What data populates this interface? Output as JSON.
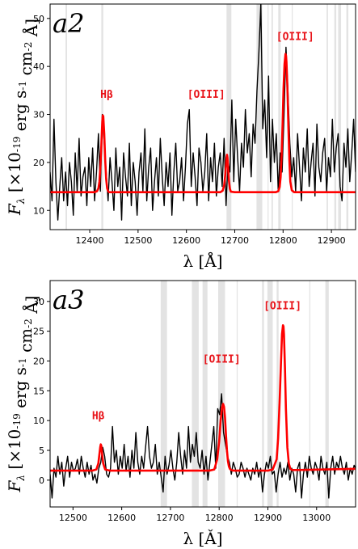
{
  "chart_data": [
    {
      "type": "line",
      "panel_label": "a2",
      "xlabel": "λ [Å]",
      "ylabel": "F_λ [×10^-19 erg s^-1 cm^-2 Å]",
      "xlim": [
        12318,
        12950
      ],
      "ylim": [
        6,
        53
      ],
      "xticks": [
        12400,
        12500,
        12600,
        12700,
        12800,
        12900
      ],
      "yticks": [
        10,
        20,
        30,
        40,
        50
      ],
      "grid": false,
      "masked_regions": [
        [
          12350,
          12353
        ],
        [
          12424,
          12428
        ],
        [
          12683,
          12693
        ],
        [
          12745,
          12757
        ],
        [
          12768,
          12770
        ],
        [
          12776,
          12779
        ],
        [
          12790,
          12795
        ],
        [
          12818,
          12820
        ],
        [
          12890,
          12893
        ],
        [
          12906,
          12910
        ],
        [
          12914,
          12920
        ],
        [
          12931,
          12935
        ]
      ],
      "colors": {
        "data": "#000000",
        "model": "#ff0000",
        "mask": "#e3e3e3",
        "label": "#e8141a"
      },
      "series": [
        {
          "role": "data",
          "x": [
            12318,
            12322,
            12326,
            12330,
            12334,
            12338,
            12342,
            12346,
            12350,
            12354,
            12358,
            12362,
            12366,
            12370,
            12374,
            12378,
            12382,
            12386,
            12390,
            12394,
            12398,
            12402,
            12406,
            12410,
            12414,
            12418,
            12422,
            12426,
            12430,
            12434,
            12438,
            12442,
            12446,
            12450,
            12454,
            12458,
            12462,
            12466,
            12470,
            12474,
            12478,
            12482,
            12486,
            12490,
            12494,
            12498,
            12502,
            12506,
            12510,
            12514,
            12518,
            12522,
            12526,
            12530,
            12534,
            12538,
            12542,
            12546,
            12550,
            12554,
            12558,
            12562,
            12566,
            12570,
            12574,
            12578,
            12582,
            12586,
            12590,
            12594,
            12598,
            12602,
            12606,
            12610,
            12614,
            12618,
            12622,
            12626,
            12630,
            12634,
            12638,
            12642,
            12646,
            12650,
            12654,
            12658,
            12662,
            12666,
            12670,
            12674,
            12678,
            12682,
            12686,
            12690,
            12694,
            12698,
            12702,
            12706,
            12710,
            12714,
            12718,
            12722,
            12726,
            12730,
            12734,
            12738,
            12742,
            12746,
            12750,
            12754,
            12758,
            12762,
            12766,
            12770,
            12774,
            12778,
            12782,
            12786,
            12790,
            12794,
            12798,
            12802,
            12806,
            12810,
            12814,
            12818,
            12822,
            12826,
            12830,
            12834,
            12838,
            12842,
            12846,
            12850,
            12854,
            12858,
            12862,
            12866,
            12870,
            12874,
            12878,
            12882,
            12886,
            12890,
            12894,
            12898,
            12902,
            12906,
            12910,
            12914,
            12918,
            12922,
            12926,
            12930,
            12934,
            12938,
            12942,
            12946,
            12950
          ],
          "y": [
            18,
            12,
            29,
            16,
            8,
            15,
            21,
            12,
            18,
            11,
            20,
            16,
            9,
            22,
            14,
            25,
            13,
            17,
            19,
            11,
            21,
            15,
            23,
            12,
            18,
            26,
            14,
            30,
            24,
            18,
            12,
            21,
            16,
            10,
            23,
            15,
            19,
            8,
            22,
            17,
            13,
            24,
            11,
            20,
            16,
            9,
            18,
            22,
            14,
            27,
            12,
            19,
            23,
            10,
            16,
            21,
            13,
            25,
            17,
            11,
            20,
            15,
            22,
            9,
            18,
            24,
            14,
            16,
            21,
            12,
            19,
            28,
            31,
            15,
            22,
            17,
            11,
            23,
            20,
            14,
            18,
            26,
            12,
            21,
            16,
            24,
            13,
            19,
            22,
            15,
            25,
            11,
            20,
            18,
            33,
            16,
            29,
            21,
            14,
            24,
            19,
            31,
            22,
            26,
            17,
            28,
            24,
            35,
            43,
            53,
            27,
            33,
            21,
            38,
            16,
            29,
            20,
            26,
            14,
            22,
            18,
            30,
            44,
            35,
            24,
            17,
            21,
            14,
            26,
            19,
            12,
            23,
            18,
            27,
            15,
            20,
            24,
            13,
            28,
            19,
            16,
            22,
            25,
            14,
            21,
            17,
            29,
            18,
            23,
            26,
            15,
            12,
            24,
            19,
            27,
            16,
            22,
            29,
            18
          ]
        },
        {
          "role": "model",
          "x": [
            12318,
            12400,
            12410,
            12415,
            12418,
            12420,
            12422,
            12424,
            12426,
            12427,
            12428,
            12430,
            12432,
            12434,
            12436,
            12438,
            12440,
            12450,
            12670,
            12675,
            12678,
            12680,
            12682,
            12683,
            12684,
            12685,
            12686,
            12688,
            12690,
            12692,
            12700,
            12785,
            12790,
            12793,
            12795,
            12797,
            12799,
            12801,
            12803,
            12805,
            12806,
            12807,
            12809,
            12811,
            12813,
            12815,
            12818,
            12823,
            12950
          ],
          "y": [
            13.8,
            13.8,
            13.8,
            14.0,
            14.6,
            16.0,
            19.0,
            23.5,
            28.5,
            29.8,
            29.6,
            26.0,
            20.5,
            16.5,
            14.6,
            14.0,
            13.8,
            13.8,
            13.8,
            14.1,
            15.2,
            17.0,
            19.5,
            21.0,
            21.6,
            21.0,
            19.3,
            16.2,
            14.5,
            13.9,
            13.8,
            13.8,
            14.0,
            14.9,
            17.0,
            21.5,
            28.0,
            35.5,
            40.5,
            42.6,
            42.3,
            41.0,
            35.5,
            27.5,
            20.5,
            16.0,
            14.2,
            13.8,
            13.8
          ]
        }
      ],
      "annotations": [
        {
          "text": "Hβ",
          "x": 12435,
          "y": 33.5
        },
        {
          "text": "[OIII]",
          "x": 12641,
          "y": 33.5
        },
        {
          "text": "[OIII]",
          "x": 12825,
          "y": 45.5
        }
      ]
    },
    {
      "type": "line",
      "panel_label": "a3",
      "xlabel": "λ [Ǎ]",
      "ylabel": "F_λ [×10^-19 erg s^-1 cm^-2 Å]",
      "xlim": [
        12453,
        13080
      ],
      "ylim": [
        -4.5,
        33.5
      ],
      "xticks": [
        12500,
        12600,
        12700,
        12800,
        12900,
        13000
      ],
      "yticks": [
        0,
        5,
        10,
        15,
        20,
        25,
        30
      ],
      "grid": false,
      "masked_regions": [
        [
          12680,
          12693
        ],
        [
          12744,
          12758
        ],
        [
          12766,
          12776
        ],
        [
          12798,
          12812
        ],
        [
          12836,
          12838
        ],
        [
          12888,
          12892
        ],
        [
          12899,
          12910
        ],
        [
          12918,
          12922
        ],
        [
          12985,
          12987
        ],
        [
          13018,
          13025
        ]
      ],
      "colors": {
        "data": "#000000",
        "model": "#ff0000",
        "mask": "#e3e3e3",
        "label": "#e8141a"
      },
      "series": [
        {
          "role": "data",
          "x": [
            12453,
            12457,
            12461,
            12465,
            12469,
            12473,
            12477,
            12481,
            12485,
            12489,
            12493,
            12497,
            12501,
            12505,
            12509,
            12513,
            12517,
            12521,
            12525,
            12529,
            12533,
            12537,
            12541,
            12545,
            12549,
            12553,
            12557,
            12561,
            12565,
            12569,
            12573,
            12577,
            12581,
            12585,
            12589,
            12593,
            12597,
            12601,
            12605,
            12609,
            12613,
            12617,
            12621,
            12625,
            12629,
            12633,
            12637,
            12641,
            12645,
            12649,
            12653,
            12657,
            12661,
            12665,
            12669,
            12673,
            12677,
            12681,
            12685,
            12689,
            12693,
            12697,
            12701,
            12705,
            12709,
            12713,
            12717,
            12721,
            12725,
            12729,
            12733,
            12737,
            12741,
            12745,
            12749,
            12753,
            12757,
            12761,
            12765,
            12769,
            12773,
            12777,
            12781,
            12785,
            12789,
            12793,
            12797,
            12801,
            12805,
            12809,
            12813,
            12817,
            12821,
            12825,
            12829,
            12833,
            12837,
            12841,
            12845,
            12849,
            12853,
            12857,
            12861,
            12865,
            12869,
            12873,
            12877,
            12881,
            12885,
            12889,
            12893,
            12897,
            12901,
            12905,
            12909,
            12913,
            12917,
            12921,
            12925,
            12929,
            12933,
            12937,
            12941,
            12945,
            12949,
            12953,
            12957,
            12961,
            12965,
            12969,
            12973,
            12977,
            12981,
            12985,
            12989,
            12993,
            12997,
            13001,
            13005,
            13009,
            13013,
            13017,
            13021,
            13025,
            13029,
            13033,
            13037,
            13041,
            13045,
            13049,
            13053,
            13057,
            13061,
            13065,
            13069,
            13073,
            13077,
            13080
          ],
          "y": [
            1,
            -3,
            2,
            0.5,
            4,
            1,
            3,
            -1,
            2,
            4,
            0.5,
            3,
            1.5,
            2,
            3.5,
            1,
            4,
            2,
            0.5,
            3,
            1,
            2.5,
            0,
            1,
            -0.5,
            2,
            3,
            5.5,
            4,
            1,
            0.5,
            2,
            9,
            3,
            5,
            1,
            4,
            2,
            6,
            1.5,
            4,
            0.5,
            5,
            2,
            8,
            3,
            1,
            4,
            2,
            5.5,
            9,
            4,
            2,
            3,
            6,
            1,
            3,
            0.5,
            -2,
            4,
            1,
            2.5,
            5,
            2,
            0,
            3,
            8,
            4,
            1,
            5,
            2,
            9,
            3,
            6,
            4,
            8,
            3,
            2,
            5,
            1,
            4,
            0,
            3,
            6,
            9,
            2,
            12,
            11,
            14.5,
            8,
            6,
            4,
            3,
            1,
            3,
            2,
            0.5,
            1,
            3,
            2,
            0.5,
            2,
            1,
            0,
            2,
            1,
            3,
            0.5,
            2,
            -2,
            1,
            3,
            2,
            4,
            1,
            1.5,
            -2,
            1,
            3,
            0.5,
            2,
            1,
            3,
            0,
            2,
            1,
            -2,
            2,
            3,
            -3,
            1,
            3,
            0.5,
            4,
            2,
            1,
            3,
            2,
            0,
            4,
            2,
            1,
            3,
            -3,
            2,
            4,
            1,
            3,
            2,
            4,
            2,
            1,
            3,
            0,
            2,
            1,
            2.5,
            2
          ]
        },
        {
          "role": "model",
          "x": [
            12453,
            12540,
            12548,
            12552,
            12554,
            12556,
            12557,
            12558,
            12560,
            12562,
            12566,
            12575,
            12780,
            12790,
            12796,
            12800,
            12803,
            12806,
            12808,
            12810,
            12812,
            12814,
            12816,
            12818,
            12820,
            12822,
            12825,
            12830,
            12900,
            12910,
            12918,
            12921,
            12924,
            12927,
            12929,
            12931,
            12932,
            12933,
            12935,
            12937,
            12940,
            12943,
            12946,
            12950,
            12960,
            13080
          ],
          "y": [
            1.6,
            1.6,
            1.8,
            2.8,
            4.2,
            5.6,
            6.0,
            5.8,
            4.2,
            2.8,
            1.8,
            1.6,
            1.6,
            1.8,
            3.5,
            6.5,
            10.0,
            12.2,
            12.8,
            12.3,
            10.5,
            7.5,
            5.0,
            3.2,
            2.3,
            1.9,
            1.7,
            1.6,
            1.6,
            1.8,
            3.5,
            7.0,
            13.0,
            20.0,
            24.5,
            26.0,
            25.8,
            24.5,
            19.0,
            12.0,
            5.5,
            2.8,
            1.9,
            1.7,
            1.7,
            1.9
          ]
        }
      ],
      "annotations": [
        {
          "text": "Hβ",
          "x": 12552,
          "y": 10.2
        },
        {
          "text": "[OIII]",
          "x": 12805,
          "y": 19.7
        },
        {
          "text": "[OIII]",
          "x": 12930,
          "y": 28.7
        }
      ]
    }
  ]
}
